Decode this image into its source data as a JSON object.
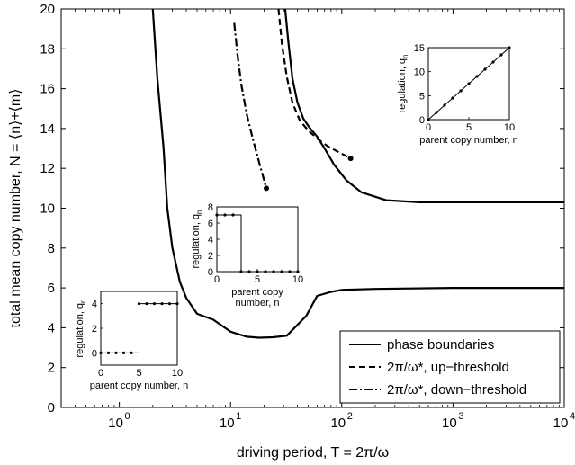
{
  "chart_data": [
    {
      "type": "line",
      "panel": "main",
      "xlabel": "driving period, T = 2π/ω",
      "ylabel": "total mean copy number, N = ⟨n⟩+⟨m⟩",
      "xscale": "log",
      "xlim": [
        0.3,
        10000
      ],
      "ylim": [
        0,
        20
      ],
      "xticks": [
        1,
        10,
        100,
        1000,
        10000
      ],
      "xtick_labels": [
        "10",
        "10",
        "10",
        "10",
        "10"
      ],
      "xtick_exponents": [
        "0",
        "1",
        "2",
        "3",
        "4"
      ],
      "yticks": [
        0,
        2,
        4,
        6,
        8,
        10,
        12,
        14,
        16,
        18,
        20
      ],
      "ytick_labels": [
        "0",
        "2",
        "4",
        "6",
        "8",
        "10",
        "12",
        "14",
        "16",
        "18",
        "20"
      ],
      "grid": false,
      "legend": {
        "placement": "bottom-right",
        "entries": [
          "phase boundaries",
          "2π/ω*, up−threshold",
          "2π/ω*, down−threshold"
        ],
        "styles": [
          "solid",
          "dashed",
          "dashdot"
        ]
      },
      "series": [
        {
          "style": "solid",
          "x": [
            2.0,
            2.2,
            2.5,
            2.7,
            3.0,
            3.5,
            4.0,
            5.0,
            7.0,
            10,
            14,
            18,
            24,
            32,
            48,
            60,
            80,
            100,
            200,
            1000,
            10000
          ],
          "y": [
            20,
            16.5,
            13,
            10,
            8,
            6.3,
            5.5,
            4.7,
            4.4,
            3.8,
            3.55,
            3.5,
            3.52,
            3.6,
            4.6,
            5.6,
            5.8,
            5.9,
            5.95,
            6.0,
            6.0
          ]
        },
        {
          "style": "solid",
          "x": [
            31,
            33,
            36,
            40,
            45,
            52,
            60,
            70,
            85,
            110,
            150,
            250,
            500,
            1000,
            10000
          ],
          "y": [
            20,
            18.4,
            16.5,
            15.3,
            14.5,
            14,
            13.6,
            13,
            12.2,
            11.4,
            10.8,
            10.4,
            10.3,
            10.3,
            10.3
          ]
        },
        {
          "style": "dashed",
          "x": [
            27,
            29,
            32,
            36,
            42,
            50,
            60,
            75,
            95,
            120
          ],
          "y": [
            20,
            18.2,
            16.6,
            15.3,
            14.4,
            13.9,
            13.5,
            13.1,
            12.8,
            12.5
          ],
          "end_marker": "dot"
        },
        {
          "style": "dashdot",
          "x": [
            10.8,
            11.5,
            12.5,
            14,
            16,
            18.5,
            21
          ],
          "y": [
            19.3,
            17.8,
            16.2,
            14.7,
            13.4,
            12.1,
            11.0
          ],
          "end_marker": "dot"
        }
      ]
    },
    {
      "type": "line",
      "panel": "inset-top-right",
      "xlabel": "parent copy number, n",
      "ylabel": "regulation, q",
      "ylabel_sub": "n",
      "xlim": [
        0,
        10
      ],
      "ylim": [
        0,
        15
      ],
      "xticks": [
        0,
        5,
        10
      ],
      "xtick_labels": [
        "0",
        "5",
        "10"
      ],
      "yticks": [
        0,
        5,
        10,
        15
      ],
      "ytick_labels": [
        "0",
        "5",
        "10",
        "15"
      ],
      "series": [
        {
          "step": false,
          "x": [
            0,
            1,
            2,
            3,
            4,
            5,
            6,
            7,
            8,
            9,
            10
          ],
          "y": [
            0,
            1.5,
            3,
            4.5,
            6,
            7.5,
            9,
            10.5,
            12,
            13.5,
            15
          ]
        }
      ]
    },
    {
      "type": "line",
      "panel": "inset-middle",
      "xlabel": "parent copy\nnumber, n",
      "ylabel": "regulation, q",
      "ylabel_sub": "n",
      "xlim": [
        0,
        10
      ],
      "ylim": [
        0,
        8
      ],
      "xticks": [
        0,
        5,
        10
      ],
      "xtick_labels": [
        "0",
        "5",
        "10"
      ],
      "yticks": [
        0,
        2,
        4,
        6,
        8
      ],
      "ytick_labels": [
        "0",
        "2",
        "4",
        "6",
        "8"
      ],
      "series": [
        {
          "step": true,
          "x": [
            0,
            1,
            2,
            3,
            4,
            5,
            6,
            7,
            8,
            9,
            10
          ],
          "y": [
            7,
            7,
            7,
            0,
            0,
            0,
            0,
            0,
            0,
            0,
            0
          ]
        }
      ]
    },
    {
      "type": "line",
      "panel": "inset-bottom-left",
      "xlabel": "parent copy number, n",
      "ylabel": "regulation, q",
      "ylabel_sub": "n",
      "xlim": [
        0,
        10
      ],
      "ylim": [
        -1,
        5
      ],
      "xticks": [
        0,
        5,
        10
      ],
      "xtick_labels": [
        "0",
        "5",
        "10"
      ],
      "yticks": [
        0,
        2,
        4
      ],
      "ytick_labels": [
        "0",
        "2",
        "4"
      ],
      "series": [
        {
          "step": true,
          "x": [
            0,
            1,
            2,
            3,
            4,
            5,
            6,
            7,
            8,
            9,
            10
          ],
          "y": [
            0,
            0,
            0,
            0,
            0,
            4,
            4,
            4,
            4,
            4,
            4
          ]
        }
      ]
    }
  ]
}
